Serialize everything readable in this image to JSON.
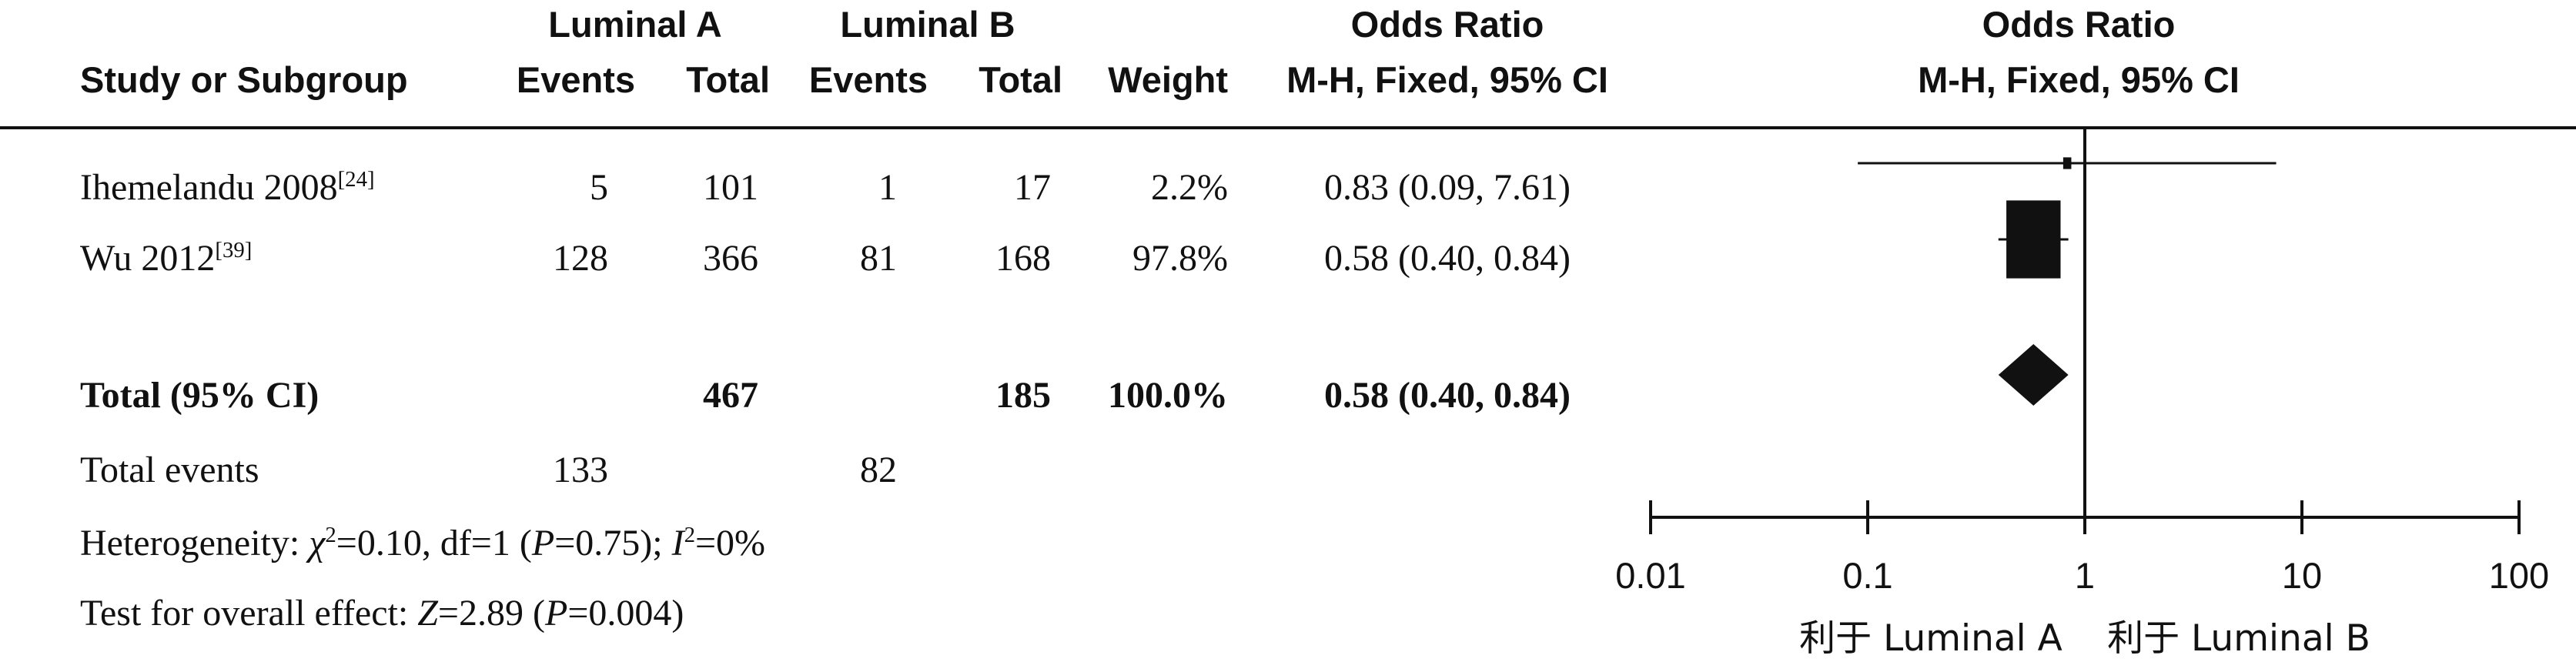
{
  "header": {
    "study_label": "Study or Subgroup",
    "group_a": "Luminal A",
    "group_b": "Luminal B",
    "events_label": "Events",
    "total_label": "Total",
    "weight_label": "Weight",
    "or_title": "Odds Ratio",
    "or_method": "M-H, Fixed, 95% CI"
  },
  "studies": [
    {
      "name": "Ihemelandu 2008",
      "ref": "[24]",
      "a_events": "5",
      "a_total": "101",
      "b_events": "1",
      "b_total": "17",
      "weight": "2.2%",
      "ci_text": "0.83 (0.09, 7.61)"
    },
    {
      "name": "Wu 2012",
      "ref": "[39]",
      "a_events": "128",
      "a_total": "366",
      "b_events": "81",
      "b_total": "168",
      "weight": "97.8%",
      "ci_text": "0.58 (0.40, 0.84)"
    }
  ],
  "total": {
    "label": "Total (95% CI)",
    "a_total": "467",
    "b_total": "185",
    "weight": "100.0%",
    "ci_text": "0.58 (0.40, 0.84)"
  },
  "total_events": {
    "label": "Total events",
    "a": "133",
    "b": "82"
  },
  "heterogeneity": {
    "prefix": "Heterogeneity: ",
    "chi_symbol": "χ",
    "chi_sq": "2",
    "chi_value": "=0.10, df=1 (",
    "p_symbol": "P",
    "p_value": "=0.75); ",
    "i_symbol": "I",
    "i_sq": "2",
    "i_value": "=0%"
  },
  "overall": {
    "prefix": "Test for overall effect: ",
    "z_symbol": "Z",
    "z_value": "=2.89 (",
    "p_symbol": "P",
    "p_value": "=0.004)"
  },
  "chart_data": {
    "type": "forest",
    "title": "Odds Ratio",
    "subtitle": "M-H, Fixed, 95% CI",
    "scale": "log",
    "xlim": [
      0.01,
      100
    ],
    "ticks": [
      0.01,
      0.1,
      1,
      10,
      100
    ],
    "tick_labels": [
      "0.01",
      "0.1",
      "1",
      "10",
      "100"
    ],
    "reference_line": 1,
    "favours_left": "利于 Luminal A",
    "favours_right": "利于 Luminal B",
    "studies": [
      {
        "name": "Ihemelandu 2008",
        "or": 0.83,
        "lower": 0.09,
        "upper": 7.61,
        "weight": 2.2
      },
      {
        "name": "Wu 2012",
        "or": 0.58,
        "lower": 0.4,
        "upper": 0.84,
        "weight": 97.8
      }
    ],
    "pooled": {
      "or": 0.58,
      "lower": 0.4,
      "upper": 0.84
    },
    "colors": {
      "ink": "#111111"
    }
  }
}
